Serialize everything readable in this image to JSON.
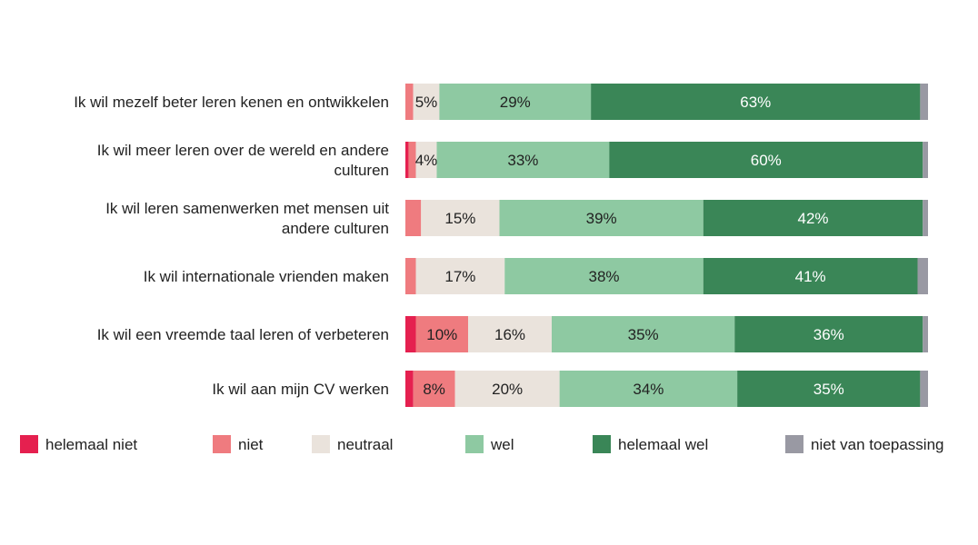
{
  "chart_data": {
    "type": "bar",
    "orientation": "horizontal",
    "stacked": true,
    "categories": [
      [
        "Ik wil mezelf beter leren kenen en ontwikkelen"
      ],
      [
        "Ik wil meer leren over de wereld en andere",
        "culturen"
      ],
      [
        "Ik wil leren samenwerken met mensen uit",
        "andere culturen"
      ],
      [
        "Ik wil internationale vrienden maken"
      ],
      [
        "Ik wil een vreemde taal leren of verbeteren"
      ],
      [
        "Ik wil aan mijn CV werken"
      ]
    ],
    "series": [
      {
        "name": "helemaal niet",
        "color": "#e5204f",
        "values": [
          0,
          0.6,
          0,
          0,
          2,
          1.5
        ],
        "labels": [
          "",
          "",
          "",
          "",
          "",
          ""
        ]
      },
      {
        "name": "niet",
        "color": "#ef7b7f",
        "values": [
          1.5,
          1.4,
          3,
          2,
          10,
          8
        ],
        "labels": [
          "",
          "",
          "",
          "",
          "10%",
          "8%"
        ]
      },
      {
        "name": "neutraal",
        "color": "#eae3dc",
        "values": [
          5,
          4,
          15,
          17,
          16,
          20
        ],
        "labels": [
          "5%",
          "4%",
          "15%",
          "17%",
          "16%",
          "20%"
        ]
      },
      {
        "name": "wel",
        "color": "#8ec9a2",
        "values": [
          29,
          33,
          39,
          38,
          35,
          34
        ],
        "labels": [
          "29%",
          "33%",
          "39%",
          "38%",
          "35%",
          "34%"
        ]
      },
      {
        "name": "helemaal wel",
        "color": "#3a8657",
        "values": [
          63,
          60,
          42,
          41,
          36,
          35
        ],
        "labels": [
          "63%",
          "60%",
          "42%",
          "41%",
          "36%",
          "35%"
        ]
      },
      {
        "name": "niet van toepassing",
        "color": "#9999a3",
        "values": [
          1.5,
          1,
          1,
          2,
          1,
          1.5
        ],
        "labels": [
          "",
          "",
          "",
          "",
          "",
          ""
        ]
      }
    ],
    "label_colors": {
      "dark_background": "#ffffff",
      "light_background": "#222222"
    },
    "legend_position": "bottom",
    "grid": false
  }
}
